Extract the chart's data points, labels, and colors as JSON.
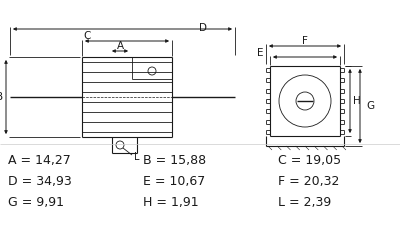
{
  "background_color": "#ffffff",
  "dim_rows": [
    [
      [
        "A",
        "14,27"
      ],
      [
        "B",
        "15,88"
      ],
      [
        "C",
        "19,05"
      ]
    ],
    [
      [
        "D",
        "34,93"
      ],
      [
        "E",
        "10,67"
      ],
      [
        "F",
        "20,32"
      ]
    ],
    [
      [
        "G",
        "9,91"
      ],
      [
        "H",
        "1,91"
      ],
      [
        "L",
        "2,39"
      ]
    ]
  ],
  "line_color": "#1a1a1a",
  "font_size_dim": 9.0
}
